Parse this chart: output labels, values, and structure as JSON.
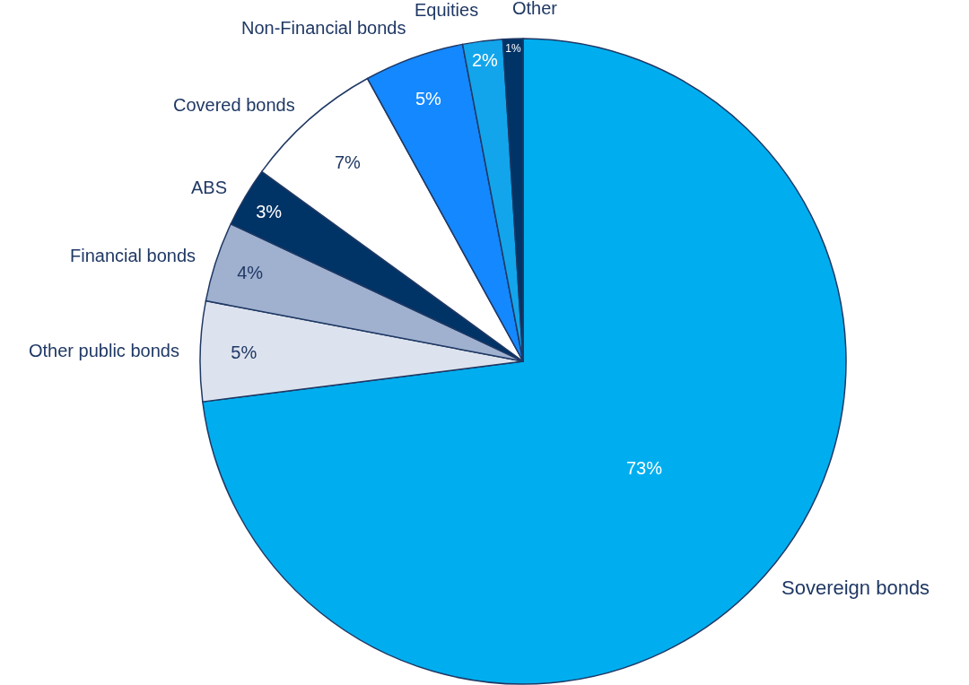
{
  "chart_data": {
    "type": "pie",
    "categories": [
      "Sovereign bonds",
      "Other public bonds",
      "Financial bonds",
      "ABS",
      "Covered bonds",
      "Non-Financial bonds",
      "Equities",
      "Other"
    ],
    "values": [
      73,
      5,
      4,
      3,
      7,
      5,
      2,
      1
    ],
    "value_labels": [
      "73%",
      "5%",
      "4%",
      "3%",
      "7%",
      "5%",
      "2%",
      "1%"
    ],
    "colors": [
      "#00aeef",
      "#dde3ee",
      "#9fb1cf",
      "#003366",
      "#ffffff",
      "#1488fe",
      "#12a5ec",
      "#003366"
    ],
    "legend": false
  }
}
